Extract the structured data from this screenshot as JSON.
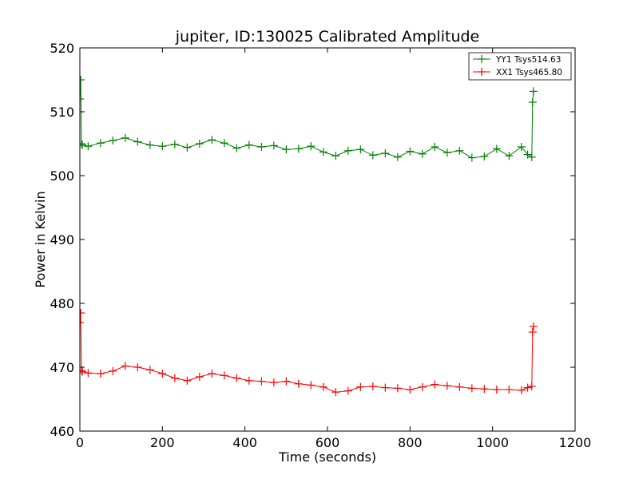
{
  "chart_data": {
    "type": "line",
    "title": "jupiter, ID:130025 Calibrated Amplitude",
    "xlabel": "Time (seconds)",
    "ylabel": "Power in Kelvin",
    "xlim": [
      0,
      1200
    ],
    "ylim": [
      460,
      520
    ],
    "xticks": [
      "0",
      "200",
      "400",
      "600",
      "800",
      "1000",
      "1200"
    ],
    "yticks": [
      "460",
      "470",
      "480",
      "490",
      "500",
      "510",
      "520"
    ],
    "legend_position": "top-right",
    "grid": false,
    "marker": "+",
    "series": [
      {
        "name": "YY1 Tsys514.63",
        "color": "#008000",
        "x": [
          0,
          2,
          4,
          6,
          20,
          50,
          80,
          110,
          140,
          170,
          200,
          230,
          260,
          290,
          320,
          350,
          380,
          410,
          440,
          470,
          500,
          530,
          560,
          590,
          620,
          650,
          680,
          710,
          740,
          770,
          800,
          830,
          860,
          890,
          920,
          950,
          980,
          1010,
          1040,
          1070,
          1085,
          1095,
          1097,
          1099
        ],
        "y": [
          512,
          515,
          505,
          504.8,
          504.6,
          505.1,
          505.5,
          505.9,
          505.3,
          504.8,
          504.6,
          504.9,
          504.4,
          505.0,
          505.6,
          505.1,
          504.3,
          504.8,
          504.5,
          504.7,
          504.1,
          504.2,
          504.6,
          503.7,
          503.1,
          503.9,
          504.1,
          503.2,
          503.5,
          502.9,
          503.8,
          503.4,
          504.5,
          503.6,
          503.9,
          502.8,
          503.0,
          504.2,
          503.1,
          504.5,
          503.3,
          502.9,
          511.5,
          513.2
        ]
      },
      {
        "name": "XX1 Tsys465.80",
        "color": "#ff0000",
        "x": [
          0,
          2,
          4,
          6,
          20,
          50,
          80,
          110,
          140,
          170,
          200,
          230,
          260,
          290,
          320,
          350,
          380,
          410,
          440,
          470,
          500,
          530,
          560,
          590,
          620,
          650,
          680,
          710,
          740,
          770,
          800,
          830,
          860,
          890,
          920,
          950,
          980,
          1010,
          1040,
          1070,
          1085,
          1095,
          1097,
          1099
        ],
        "y": [
          477,
          478.5,
          469.5,
          469.3,
          469.1,
          469.0,
          469.4,
          470.2,
          470.0,
          469.6,
          469.0,
          468.3,
          467.9,
          468.5,
          469.0,
          468.7,
          468.3,
          467.9,
          467.8,
          467.6,
          467.8,
          467.4,
          467.2,
          466.9,
          466.1,
          466.3,
          466.9,
          467.0,
          466.8,
          466.7,
          466.5,
          466.9,
          467.3,
          467.1,
          466.9,
          466.7,
          466.6,
          466.5,
          466.5,
          466.4,
          466.8,
          467.0,
          475.5,
          476.4
        ]
      }
    ]
  }
}
